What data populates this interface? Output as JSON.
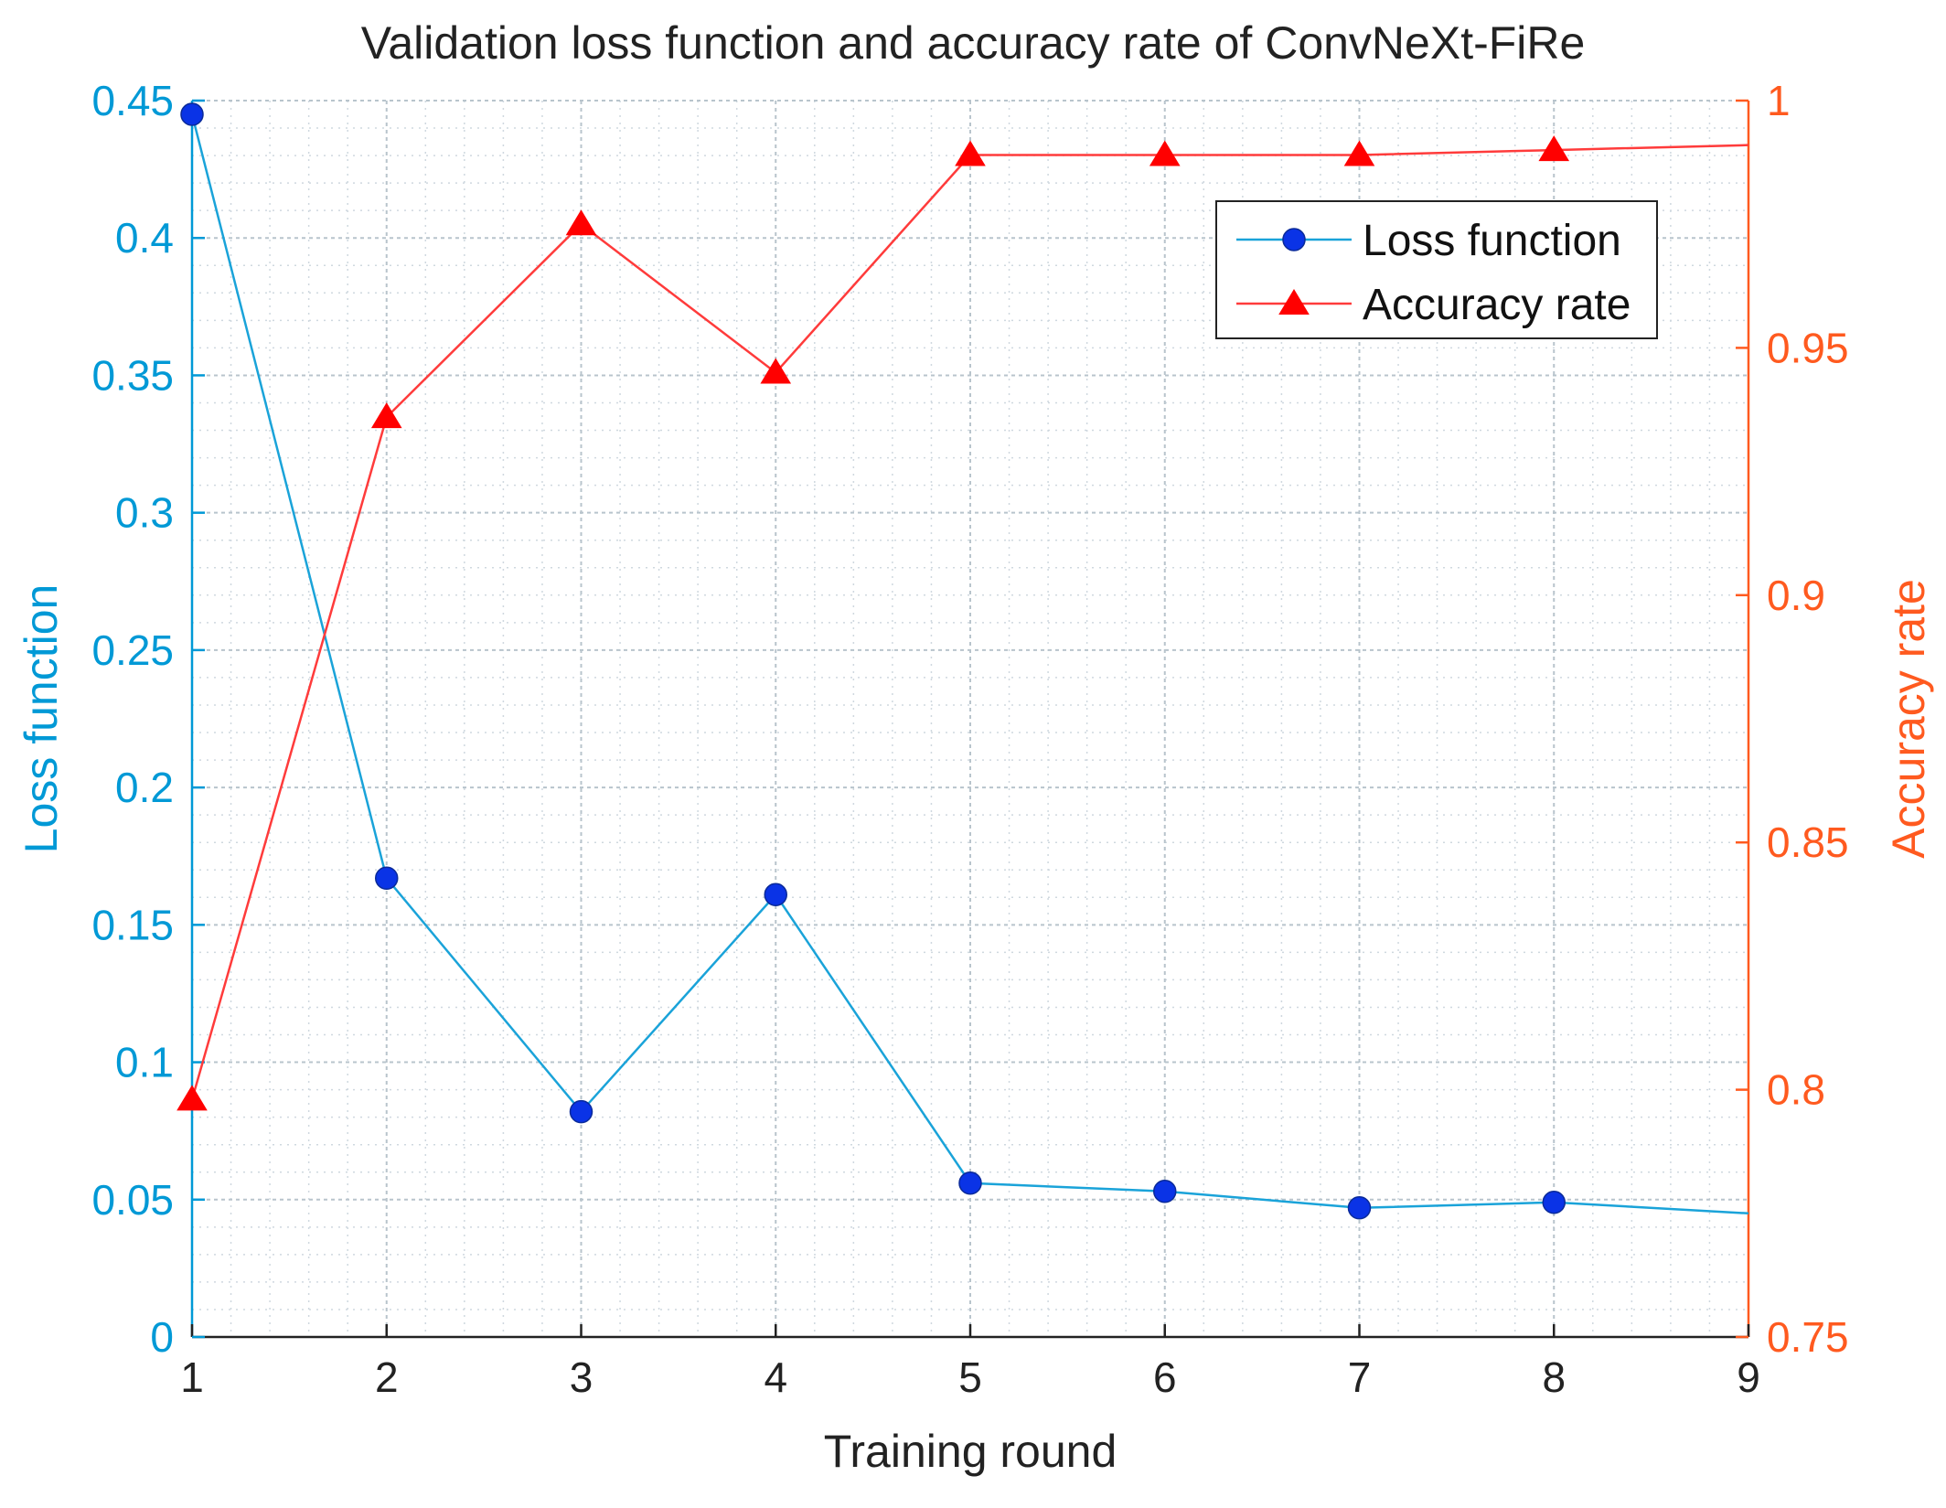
{
  "chart_data": {
    "type": "line",
    "title": "Validation loss function and accuracy rate of ConvNeXt-FiRe",
    "xlabel": "Training round",
    "ylabel_left": "Loss function",
    "ylabel_right": "Accuracy rate",
    "x": [
      1,
      2,
      3,
      4,
      5,
      6,
      7,
      8,
      9
    ],
    "xlim": [
      1,
      9
    ],
    "x_ticks": [
      "1",
      "2",
      "3",
      "4",
      "5",
      "6",
      "7",
      "8",
      "9"
    ],
    "ylim_left": [
      0,
      0.45
    ],
    "y_ticks_left": [
      "0",
      "0.05",
      "0.1",
      "0.15",
      "0.2",
      "0.25",
      "0.3",
      "0.35",
      "0.4",
      "0.45"
    ],
    "ylim_right": [
      0.75,
      1
    ],
    "y_ticks_right": [
      "0.75",
      "0.8",
      "0.85",
      "0.9",
      "0.95",
      "1"
    ],
    "grid": true,
    "minor_grid": true,
    "legend_position": "top-right",
    "series": [
      {
        "name": "Loss function",
        "axis": "left",
        "marker": "circle",
        "marker_on_last": false,
        "color": "#1aa3d9",
        "marker_color": "#0a33e6",
        "values": [
          0.445,
          0.167,
          0.082,
          0.161,
          0.056,
          0.053,
          0.047,
          0.049,
          0.045
        ]
      },
      {
        "name": "Accuracy rate",
        "axis": "right",
        "marker": "triangle",
        "marker_on_last": false,
        "color": "#ff3b3b",
        "marker_color": "#ff0000",
        "values": [
          0.798,
          0.936,
          0.975,
          0.945,
          0.989,
          0.989,
          0.989,
          0.99,
          0.991
        ]
      }
    ],
    "colors": {
      "left_axis": "#0099d6",
      "right_axis": "#ff5a1f",
      "grid": "#cfd8df",
      "legend_border": "#222222"
    }
  }
}
